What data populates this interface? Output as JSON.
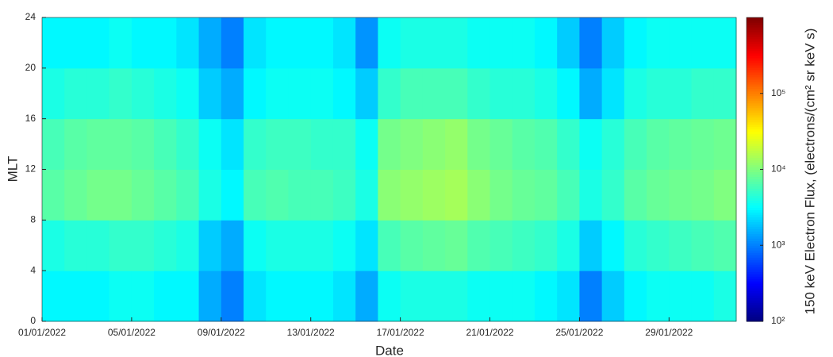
{
  "chart_data": {
    "type": "heatmap",
    "xlabel": "Date",
    "ylabel": "MLT",
    "colorbar_label": "150 keV Electron Flux, (electrons/(cm² sr keV s)",
    "colormap": "jet",
    "color_scale": "log",
    "x": [
      0,
      1,
      2,
      3,
      4,
      5,
      6,
      7,
      8,
      9,
      10,
      11,
      12,
      13,
      14,
      15,
      16,
      17,
      18,
      19,
      20,
      21,
      22,
      23,
      24,
      25,
      26,
      27,
      28,
      29,
      30,
      31
    ],
    "y": [
      0,
      4,
      8,
      12,
      16,
      20,
      24
    ],
    "values": [
      [
        3000,
        4000,
        7000,
        6000,
        4000,
        3000
      ],
      [
        3000,
        4500,
        8000,
        7000,
        4500,
        3000
      ],
      [
        3000,
        4500,
        9000,
        7500,
        4500,
        3000
      ],
      [
        3500,
        5000,
        9000,
        7500,
        5000,
        3500
      ],
      [
        3500,
        5000,
        8000,
        7000,
        4500,
        3000
      ],
      [
        3000,
        4500,
        7000,
        6000,
        4000,
        3000
      ],
      [
        3000,
        4000,
        6000,
        5000,
        3500,
        2500
      ],
      [
        1500,
        2000,
        4000,
        3500,
        2000,
        1500
      ],
      [
        1000,
        1500,
        3000,
        2500,
        1500,
        1000
      ],
      [
        2500,
        3500,
        6000,
        5000,
        3000,
        2500
      ],
      [
        3000,
        4000,
        6500,
        5500,
        3500,
        3000
      ],
      [
        3000,
        4000,
        6000,
        5500,
        3500,
        3000
      ],
      [
        3000,
        4000,
        6000,
        5000,
        3500,
        3000
      ],
      [
        2500,
        3500,
        5500,
        5000,
        3000,
        2500
      ],
      [
        1500,
        2500,
        4000,
        3500,
        2000,
        1200
      ],
      [
        3500,
        6000,
        11000,
        9000,
        5000,
        3500
      ],
      [
        4000,
        7000,
        12000,
        10000,
        6000,
        4000
      ],
      [
        4000,
        7500,
        13000,
        11000,
        6000,
        4000
      ],
      [
        4000,
        8000,
        14000,
        12000,
        6000,
        4000
      ],
      [
        3500,
        6500,
        11000,
        9000,
        5000,
        3500
      ],
      [
        3500,
        6000,
        9000,
        8000,
        4500,
        3500
      ],
      [
        3500,
        5500,
        8000,
        7000,
        4500,
        3500
      ],
      [
        3000,
        5000,
        7500,
        6500,
        4000,
        3000
      ],
      [
        2500,
        4000,
        6000,
        5000,
        3000,
        2000
      ],
      [
        1000,
        2000,
        4000,
        3500,
        1500,
        1000
      ],
      [
        2000,
        3000,
        5000,
        4500,
        2500,
        2000
      ],
      [
        3000,
        4500,
        7000,
        6000,
        4000,
        3000
      ],
      [
        3500,
        5000,
        8000,
        7000,
        4500,
        3500
      ],
      [
        3500,
        5500,
        8500,
        7500,
        4500,
        3500
      ],
      [
        3500,
        6000,
        9000,
        8000,
        5000,
        3500
      ],
      [
        4000,
        6500,
        10000,
        8500,
        5000,
        3500
      ]
    ],
    "xlim": [
      0,
      31
    ],
    "xticks": [
      {
        "value": 0,
        "label": "01/01/2022"
      },
      {
        "value": 4,
        "label": "05/01/2022"
      },
      {
        "value": 8,
        "label": "09/01/2022"
      },
      {
        "value": 12,
        "label": "13/01/2022"
      },
      {
        "value": 16,
        "label": "17/01/2022"
      },
      {
        "value": 20,
        "label": "21/01/2022"
      },
      {
        "value": 24,
        "label": "25/01/2022"
      },
      {
        "value": 28,
        "label": "29/01/2022"
      }
    ],
    "ylim": [
      0,
      24
    ],
    "yticks": [
      0,
      4,
      8,
      12,
      16,
      20,
      24
    ],
    "clim": [
      100,
      1000000
    ],
    "cticks": [
      {
        "value": 100,
        "label": "10²"
      },
      {
        "value": 1000,
        "label": "10³"
      },
      {
        "value": 10000,
        "label": "10⁴"
      },
      {
        "value": 100000,
        "label": "10⁵"
      }
    ]
  }
}
